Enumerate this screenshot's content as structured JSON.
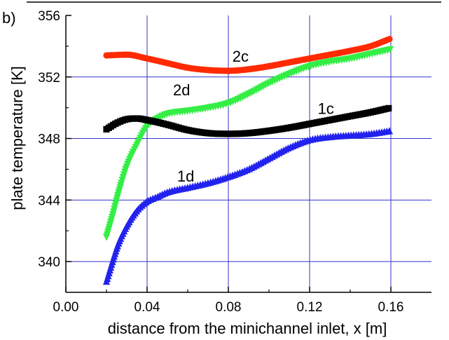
{
  "chart_data": {
    "type": "scatter",
    "panel_label": "b)",
    "xlabel": "distance from the minichannel inlet, x [m]",
    "ylabel": "plate temperature [K]",
    "xlim": [
      0.0,
      0.18
    ],
    "ylim": [
      338.0,
      356.0
    ],
    "x_ticks": [
      0.0,
      0.04,
      0.08,
      0.12,
      0.16
    ],
    "x_tick_labels": [
      "0.00",
      "0.04",
      "0.08",
      "0.12",
      "0.16"
    ],
    "y_ticks": [
      340,
      344,
      348,
      352,
      356
    ],
    "y_tick_labels": [
      "340",
      "344",
      "348",
      "352",
      "356"
    ],
    "grid": true,
    "series": [
      {
        "name": "2c",
        "color": "#ff2a00",
        "marker": "circle",
        "x": [
          0.02,
          0.03,
          0.04,
          0.05,
          0.06,
          0.07,
          0.08,
          0.09,
          0.1,
          0.11,
          0.12,
          0.13,
          0.14,
          0.15,
          0.16
        ],
        "y": [
          353.4,
          353.45,
          353.2,
          352.9,
          352.6,
          352.45,
          352.4,
          352.5,
          352.7,
          352.95,
          353.2,
          353.45,
          353.7,
          354.0,
          354.5
        ]
      },
      {
        "name": "2d",
        "color": "#33ee44",
        "marker": "triangle-down",
        "x": [
          0.02,
          0.023,
          0.026,
          0.03,
          0.035,
          0.04,
          0.045,
          0.05,
          0.06,
          0.07,
          0.08,
          0.09,
          0.1,
          0.11,
          0.12,
          0.13,
          0.14,
          0.15,
          0.16
        ],
        "y": [
          341.6,
          343.0,
          344.5,
          346.2,
          347.6,
          348.8,
          349.3,
          349.6,
          349.8,
          350.0,
          350.3,
          350.9,
          351.6,
          352.2,
          352.7,
          353.0,
          353.2,
          353.5,
          353.8
        ]
      },
      {
        "name": "1c",
        "color": "#000000",
        "marker": "square",
        "x": [
          0.02,
          0.025,
          0.03,
          0.035,
          0.04,
          0.05,
          0.06,
          0.07,
          0.08,
          0.09,
          0.1,
          0.11,
          0.12,
          0.13,
          0.14,
          0.15,
          0.16
        ],
        "y": [
          348.6,
          349.0,
          349.25,
          349.3,
          349.2,
          348.9,
          348.55,
          348.35,
          348.3,
          348.35,
          348.5,
          348.7,
          348.95,
          349.2,
          349.45,
          349.7,
          350.0
        ]
      },
      {
        "name": "1d",
        "color": "#2222ee",
        "marker": "triangle-up",
        "x": [
          0.02,
          0.023,
          0.026,
          0.03,
          0.035,
          0.04,
          0.045,
          0.05,
          0.06,
          0.07,
          0.08,
          0.09,
          0.1,
          0.11,
          0.12,
          0.13,
          0.14,
          0.15,
          0.16
        ],
        "y": [
          338.7,
          340.0,
          341.2,
          342.3,
          343.3,
          343.9,
          344.2,
          344.5,
          344.8,
          345.1,
          345.5,
          346.0,
          346.7,
          347.4,
          347.9,
          348.1,
          348.2,
          348.3,
          348.5
        ]
      }
    ],
    "annotations": [
      {
        "text": "2c",
        "x": 0.086,
        "y": 353.0
      },
      {
        "text": "2d",
        "x": 0.057,
        "y": 350.8
      },
      {
        "text": "1c",
        "x": 0.128,
        "y": 349.6
      },
      {
        "text": "1d",
        "x": 0.059,
        "y": 345.2
      }
    ]
  }
}
